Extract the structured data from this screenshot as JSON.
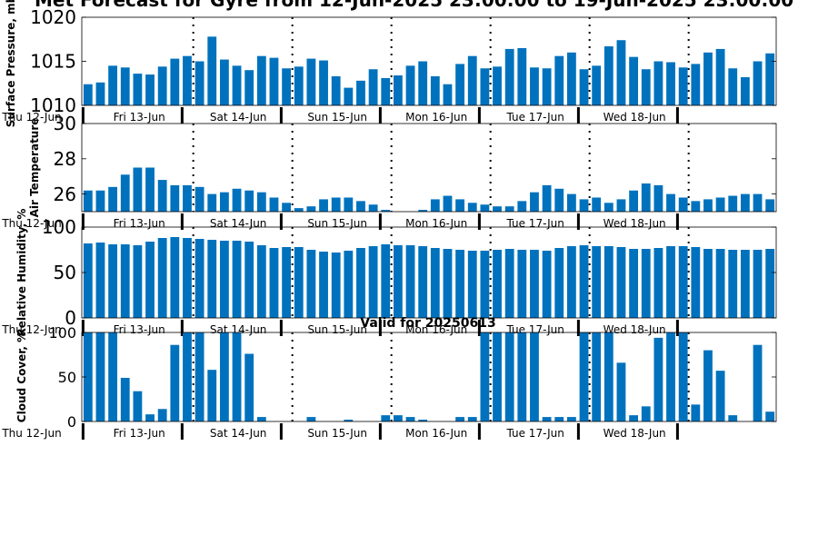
{
  "title": "Met Forecast for Gyre from 12-Jun-2025 23:00:00 to 19-Jun-2025 23:00:00",
  "bar_color": "#0072bd",
  "chart_data": [
    {
      "type": "bar",
      "ylabel": "Surface Pressure, mb",
      "ylim": [
        1010,
        1020
      ],
      "yticks": [
        1010,
        1015,
        1020
      ],
      "tick_font": 20,
      "values": [
        1012.4,
        1012.6,
        1014.5,
        1014.3,
        1013.6,
        1013.5,
        1014.4,
        1015.3,
        1015.6,
        1015.0,
        1017.8,
        1015.2,
        1014.5,
        1014.0,
        1015.6,
        1015.4,
        1014.2,
        1014.4,
        1015.3,
        1015.1,
        1013.3,
        1012.0,
        1012.8,
        1014.1,
        1013.1,
        1013.4,
        1014.5,
        1015.0,
        1013.3,
        1012.4,
        1014.7,
        1015.6,
        1014.2,
        1014.4,
        1016.4,
        1016.5,
        1014.3,
        1014.2,
        1015.6,
        1016.0,
        1014.1,
        1014.5,
        1016.7,
        1017.4,
        1015.5,
        1014.1,
        1015.0,
        1014.9,
        1014.3,
        1014.7,
        1016.0,
        1016.4,
        1014.2,
        1013.2,
        1015.0,
        1015.9
      ]
    },
    {
      "type": "bar",
      "ylabel": "Air Temperature",
      "ylim": [
        25,
        30
      ],
      "yticks": [
        26,
        28,
        30
      ],
      "tick_font": 20,
      "values": [
        26.2,
        26.2,
        26.4,
        27.1,
        27.5,
        27.5,
        26.8,
        26.5,
        26.5,
        26.4,
        26.0,
        26.1,
        26.3,
        26.2,
        26.1,
        25.8,
        25.5,
        25.2,
        25.3,
        25.7,
        25.8,
        25.8,
        25.6,
        25.4,
        25.1,
        24.9,
        24.9,
        25.1,
        25.7,
        25.9,
        25.7,
        25.5,
        25.4,
        25.3,
        25.3,
        25.6,
        26.1,
        26.5,
        26.3,
        26.0,
        25.7,
        25.8,
        25.5,
        25.7,
        26.2,
        26.6,
        26.5,
        26.0,
        25.8,
        25.6,
        25.7,
        25.8,
        25.9,
        26.0,
        26.0,
        25.7
      ]
    },
    {
      "type": "bar",
      "ylabel": "Relative Humidity, %",
      "ylim": [
        0,
        100
      ],
      "yticks": [
        0,
        50,
        100
      ],
      "tick_font": 20,
      "values": [
        82,
        83,
        81,
        81,
        80,
        84,
        88,
        89,
        88,
        87,
        86,
        85,
        85,
        84,
        80,
        77,
        78,
        78,
        75,
        73,
        72,
        74,
        77,
        79,
        81,
        80,
        80,
        79,
        77,
        76,
        75,
        74,
        74,
        75,
        76,
        75,
        75,
        74,
        77,
        79,
        80,
        79,
        79,
        78,
        76,
        76,
        77,
        79,
        79,
        78,
        76,
        76,
        75,
        75,
        75,
        76
      ]
    },
    {
      "type": "bar",
      "ylabel": "Cloud Cover, %",
      "subtitle": "Valid for 20250613",
      "ylim": [
        0,
        100
      ],
      "yticks": [
        0,
        50,
        100
      ],
      "tick_font": 16,
      "values": [
        100,
        100,
        100,
        49,
        34,
        8,
        14,
        86,
        100,
        100,
        58,
        100,
        100,
        76,
        5,
        0,
        0,
        0,
        5,
        0,
        0,
        2,
        0,
        0,
        7,
        7,
        5,
        2,
        0,
        0,
        5,
        5,
        100,
        100,
        100,
        100,
        100,
        5,
        5,
        5,
        100,
        100,
        100,
        66,
        7,
        17,
        94,
        100,
        100,
        19,
        80,
        57,
        7,
        0,
        86,
        11
      ]
    }
  ],
  "day_labels": [
    "Thu 12-Jun",
    "Fri 13-Jun",
    "Sat 14-Jun",
    "Sun 15-Jun",
    "Mon 16-Jun",
    "Tue 17-Jun",
    "Wed 18-Jun"
  ]
}
